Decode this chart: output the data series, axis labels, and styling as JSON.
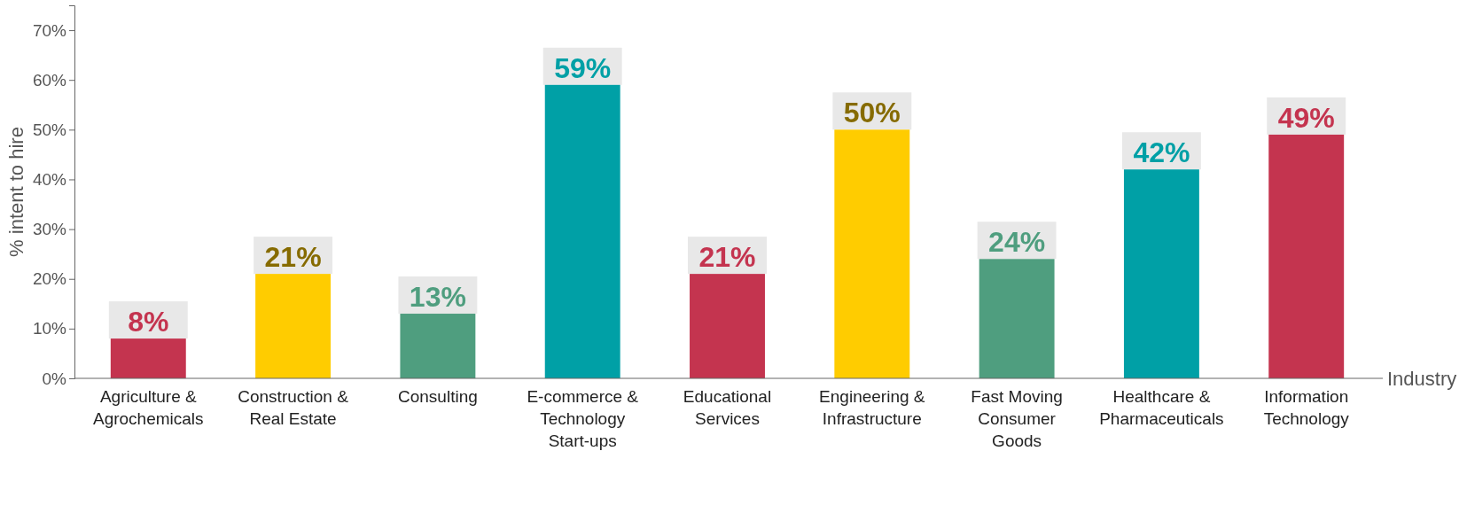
{
  "chart_data": {
    "type": "bar",
    "xlabel": "Industry",
    "ylabel": "% intent to hire",
    "categories": [
      "Agriculture & Agrochemicals",
      "Construction & Real Estate",
      "Consulting",
      "E-commerce & Technology Start-ups",
      "Educational Services",
      "Engineering & Infrastructure",
      "Fast Moving Consumer Goods",
      "Healthcare & Pharmaceuticals",
      "Information Technology"
    ],
    "values": [
      8,
      21,
      13,
      59,
      21,
      50,
      24,
      42,
      49
    ],
    "colors": [
      "#c4344f",
      "#ffcc00",
      "#4f9e7f",
      "#00a0a6",
      "#c4344f",
      "#ffcc00",
      "#4f9e7f",
      "#00a0a6",
      "#c4344f"
    ],
    "value_labels": [
      "8%",
      "21%",
      "13%",
      "59%",
      "21%",
      "50%",
      "24%",
      "42%",
      "49%"
    ],
    "ylim": [
      0,
      75
    ],
    "yticks": [
      {
        "value": 0,
        "label": "0%"
      },
      {
        "value": 10,
        "label": "10%"
      },
      {
        "value": 20,
        "label": "20%"
      },
      {
        "value": 30,
        "label": "30%"
      },
      {
        "value": 40,
        "label": "40%"
      },
      {
        "value": 50,
        "label": "50%"
      },
      {
        "value": 60,
        "label": "60%"
      },
      {
        "value": 70,
        "label": "70%"
      }
    ],
    "grid": false
  }
}
